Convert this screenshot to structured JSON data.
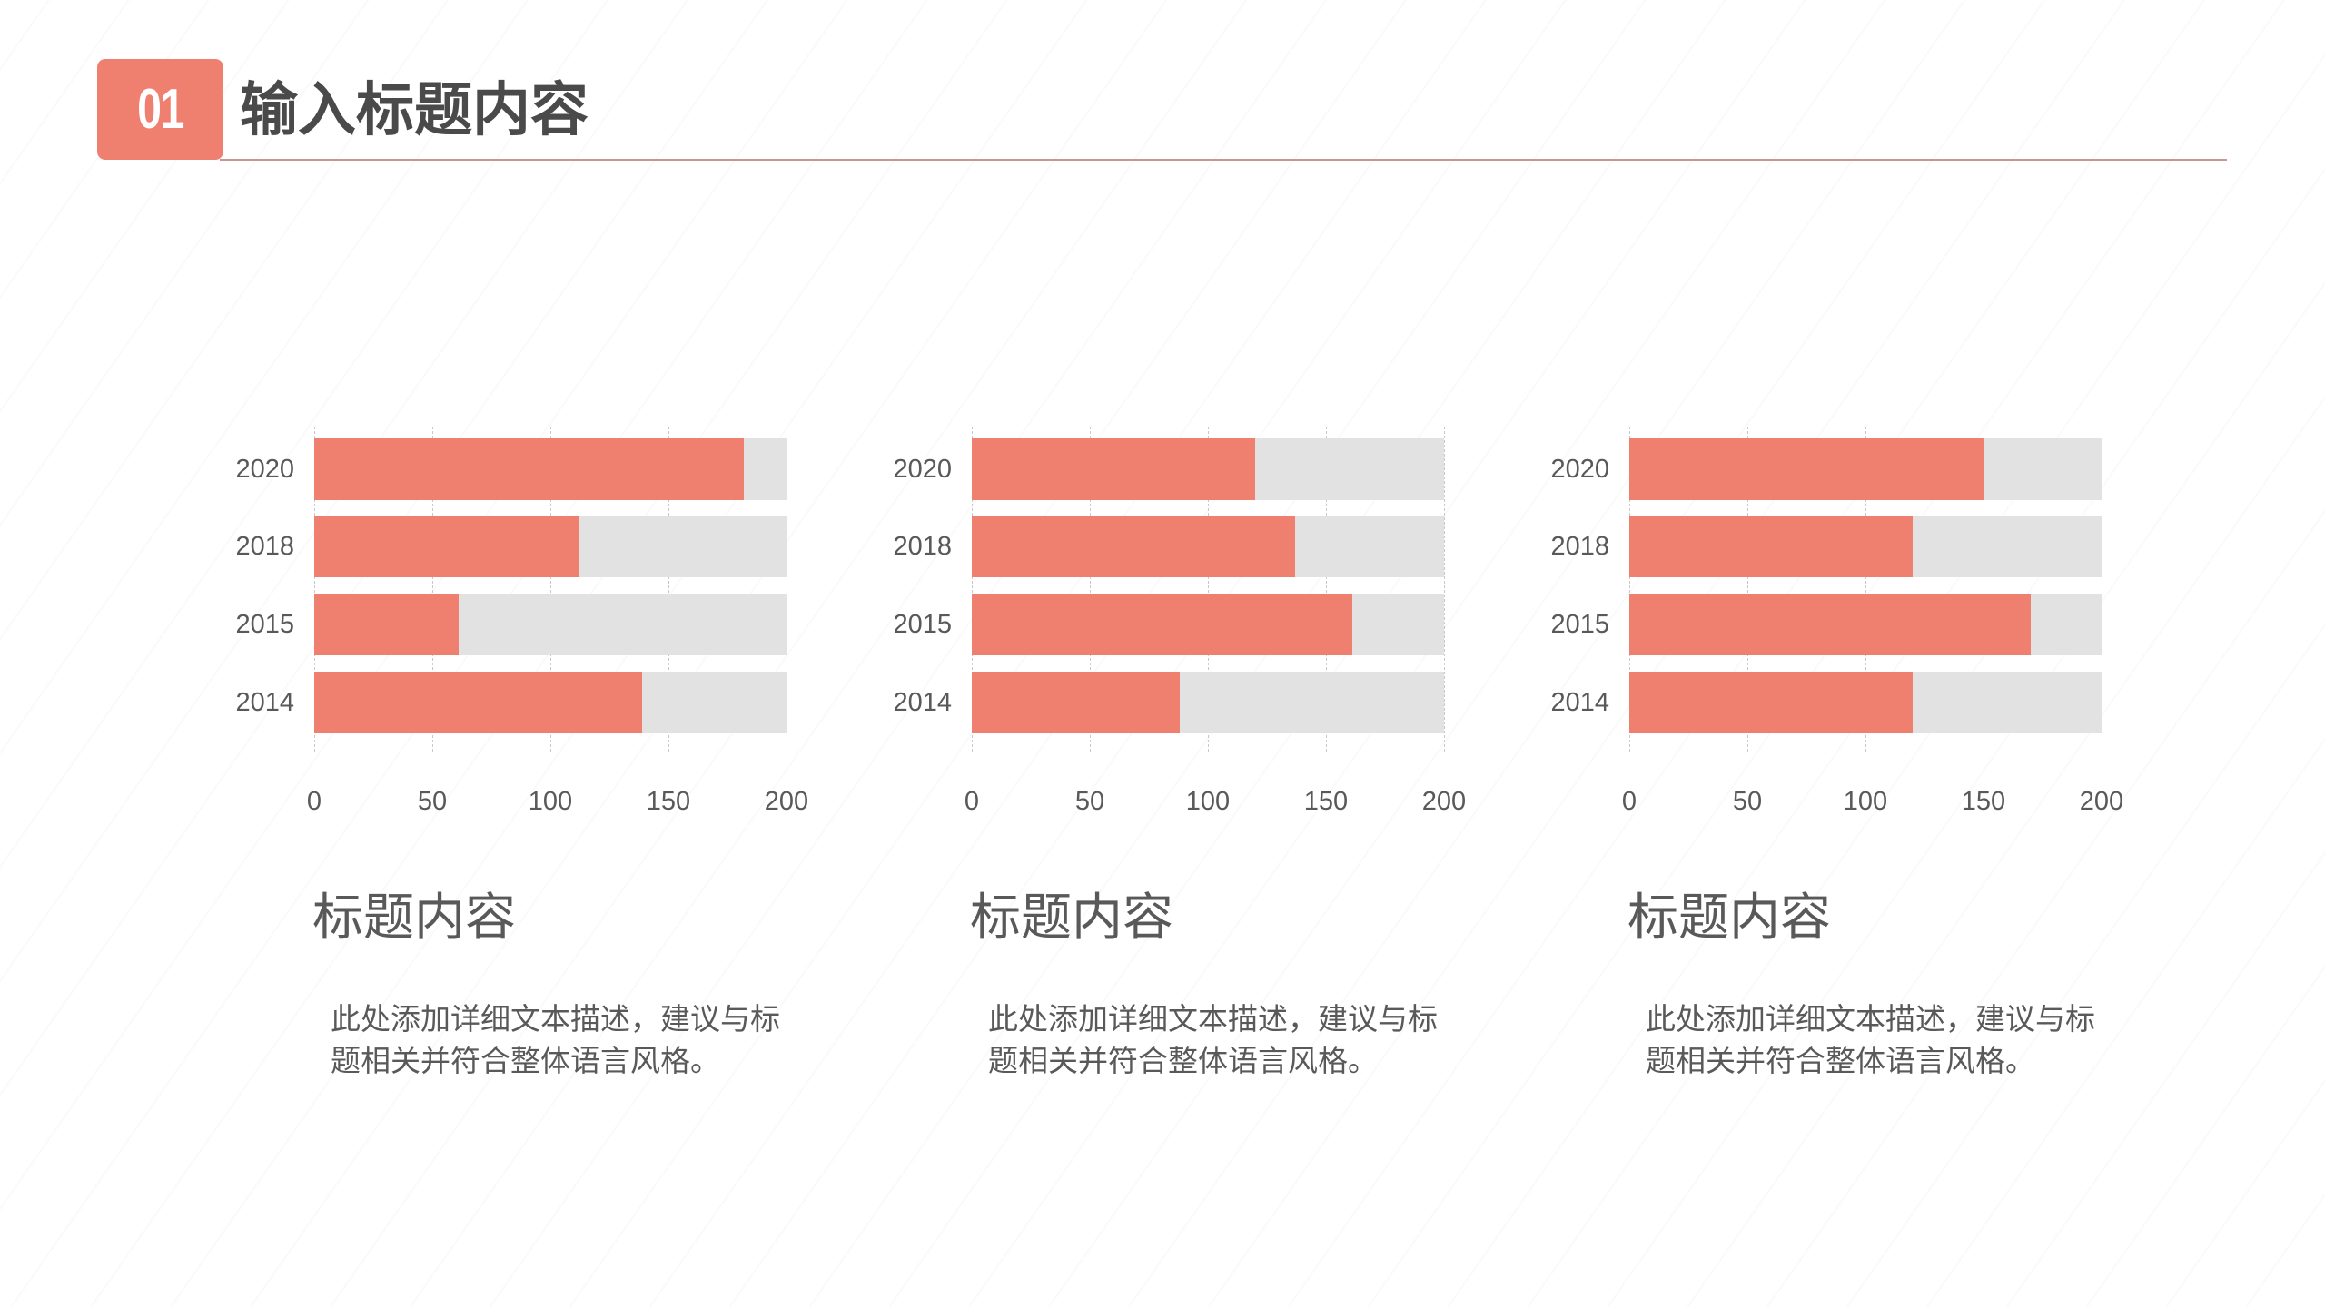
{
  "header": {
    "badge_number": "01",
    "title": "输入标题内容",
    "accent_color": "#ef7f6f",
    "line_color": "#c9978b"
  },
  "colors": {
    "bar": "#ef7f6f",
    "track": "#e2e2e2",
    "text": "#595959"
  },
  "blocks": [
    {
      "title": "标题内容",
      "description": "此处添加详细文本描述，建议与标题相关并符合整体语言风格。"
    },
    {
      "title": "标题内容",
      "description": "此处添加详细文本描述，建议与标题相关并符合整体语言风格。"
    },
    {
      "title": "标题内容",
      "description": "此处添加详细文本描述，建议与标题相关并符合整体语言风格。"
    }
  ],
  "chart_data": [
    {
      "type": "bar",
      "orientation": "horizontal",
      "title": "",
      "categories": [
        "2020",
        "2018",
        "2015",
        "2014"
      ],
      "values": [
        182,
        112,
        61,
        139
      ],
      "xlabel": "",
      "ylabel": "",
      "xlim": [
        0,
        200
      ],
      "xticks": [
        "0",
        "50",
        "100",
        "150",
        "200"
      ],
      "grid": true,
      "background_track_max": 200
    },
    {
      "type": "bar",
      "orientation": "horizontal",
      "title": "",
      "categories": [
        "2020",
        "2018",
        "2015",
        "2014"
      ],
      "values": [
        120,
        137,
        161,
        88
      ],
      "xlabel": "",
      "ylabel": "",
      "xlim": [
        0,
        200
      ],
      "xticks": [
        "0",
        "50",
        "100",
        "150",
        "200"
      ],
      "grid": true,
      "background_track_max": 200
    },
    {
      "type": "bar",
      "orientation": "horizontal",
      "title": "",
      "categories": [
        "2020",
        "2018",
        "2015",
        "2014"
      ],
      "values": [
        150,
        120,
        170,
        120
      ],
      "xlabel": "",
      "ylabel": "",
      "xlim": [
        0,
        200
      ],
      "xticks": [
        "0",
        "50",
        "100",
        "150",
        "200"
      ],
      "grid": true,
      "background_track_max": 200
    }
  ]
}
